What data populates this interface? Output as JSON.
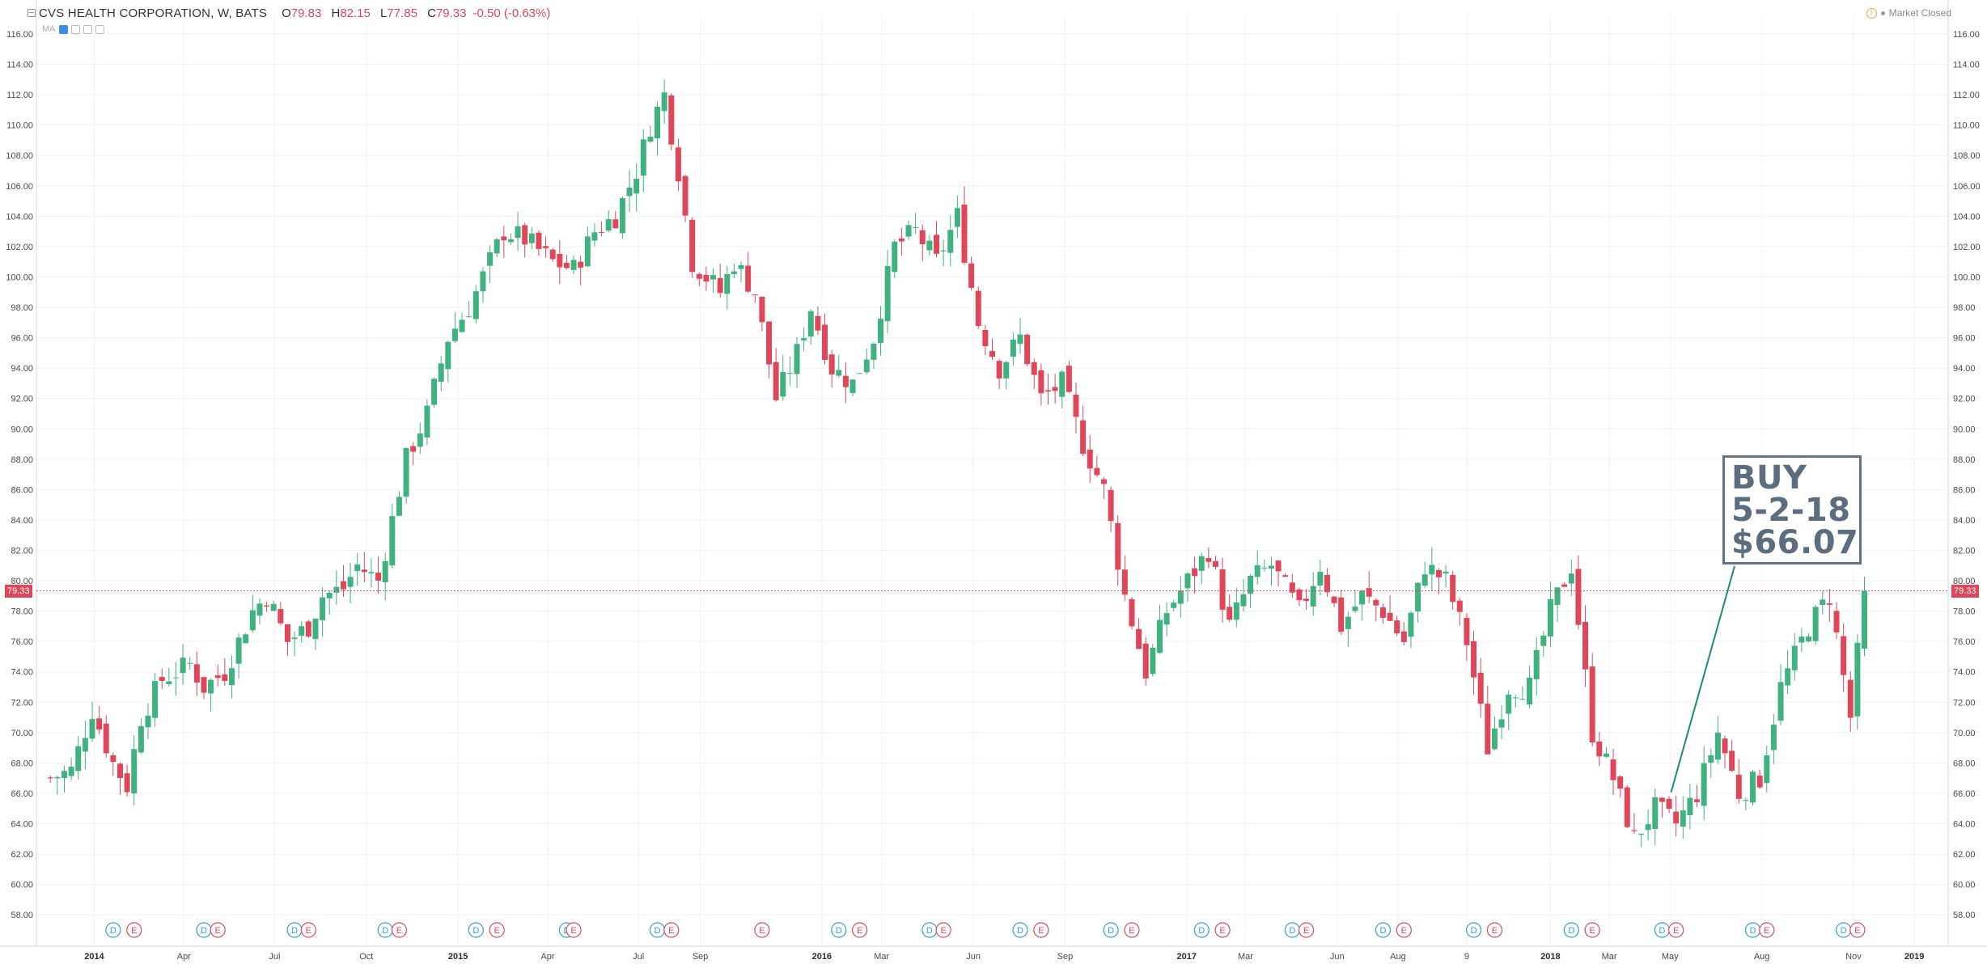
{
  "header": {
    "symbol": "CVS HEALTH CORPORATION, W, BATS",
    "o_label": "O",
    "o_value": "79.83",
    "h_label": "H",
    "h_value": "82.15",
    "l_label": "L",
    "l_value": "77.85",
    "c_label": "C",
    "c_value": "79.33",
    "change": "-0.50 (-0.63%)",
    "ma_label": "MA",
    "market_status": "Market Closed",
    "last_price_tag": "79.33"
  },
  "annotation": {
    "line1": "BUY",
    "line2": "5-2-18",
    "line3": "$66.07",
    "points_to": {
      "date": "2018-05-02",
      "price": 66.07
    }
  },
  "colors": {
    "up": "#3fb27f",
    "down": "#e0465a",
    "grid": "#eef2f5",
    "dividend_marker": "#2f9ce6",
    "earnings_marker": "#e0465a",
    "annotation": "#5d6d80"
  },
  "chart_data": {
    "type": "candlestick",
    "title": "CVS HEALTH CORPORATION, W, BATS",
    "interval": "W",
    "ylim": [
      57,
      116
    ],
    "y_ticks": [
      "58.00",
      "60.00",
      "62.00",
      "64.00",
      "66.00",
      "68.00",
      "70.00",
      "72.00",
      "74.00",
      "76.00",
      "78.00",
      "80.00",
      "82.00",
      "84.00",
      "86.00",
      "88.00",
      "90.00",
      "92.00",
      "94.00",
      "96.00",
      "98.00",
      "100.00",
      "102.00",
      "104.00",
      "106.00",
      "108.00",
      "110.00",
      "112.00",
      "114.00",
      "116.00"
    ],
    "x_ticks": [
      {
        "label": "2014",
        "date": "2014-01-01",
        "bold": true
      },
      {
        "label": "Apr",
        "date": "2014-04-01"
      },
      {
        "label": "Jul",
        "date": "2014-07-01"
      },
      {
        "label": "Oct",
        "date": "2014-10-01"
      },
      {
        "label": "2015",
        "date": "2015-01-01",
        "bold": true
      },
      {
        "label": "Apr",
        "date": "2015-04-01"
      },
      {
        "label": "Jul",
        "date": "2015-07-01"
      },
      {
        "label": "Sep",
        "date": "2015-09-01"
      },
      {
        "label": "2016",
        "date": "2016-01-01",
        "bold": true
      },
      {
        "label": "Mar",
        "date": "2016-03-01"
      },
      {
        "label": "Jun",
        "date": "2016-06-01"
      },
      {
        "label": "Sep",
        "date": "2016-09-01"
      },
      {
        "label": "2017",
        "date": "2017-01-01",
        "bold": true
      },
      {
        "label": "Mar",
        "date": "2017-03-01"
      },
      {
        "label": "Jun",
        "date": "2017-06-01"
      },
      {
        "label": "Aug",
        "date": "2017-08-01"
      },
      {
        "label": "9",
        "date": "2017-10-09"
      },
      {
        "label": "2018",
        "date": "2018-01-01",
        "bold": true
      },
      {
        "label": "Mar",
        "date": "2018-03-01"
      },
      {
        "label": "May",
        "date": "2018-05-01"
      },
      {
        "label": "Aug",
        "date": "2018-08-01"
      },
      {
        "label": "Nov",
        "date": "2018-11-01"
      },
      {
        "label": "2019",
        "date": "2019-01-01",
        "bold": true
      }
    ],
    "price_anchors": [
      [
        "2013-11-18",
        67.0
      ],
      [
        "2013-12-09",
        67.5
      ],
      [
        "2013-12-30",
        71.5
      ],
      [
        "2014-01-20",
        68.0
      ],
      [
        "2014-02-03",
        66.5
      ],
      [
        "2014-02-17",
        71.0
      ],
      [
        "2014-03-10",
        73.5
      ],
      [
        "2014-04-07",
        74.5
      ],
      [
        "2014-04-21",
        73.0
      ],
      [
        "2014-05-12",
        74.0
      ],
      [
        "2014-06-09",
        78.0
      ],
      [
        "2014-06-23",
        79.0
      ],
      [
        "2014-07-14",
        76.0
      ],
      [
        "2014-08-04",
        77.0
      ],
      [
        "2014-08-18",
        79.0
      ],
      [
        "2014-09-08",
        79.5
      ],
      [
        "2014-09-22",
        81.0
      ],
      [
        "2014-10-13",
        80.0
      ],
      [
        "2014-10-27",
        84.0
      ],
      [
        "2014-11-10",
        88.0
      ],
      [
        "2014-12-01",
        91.0
      ],
      [
        "2014-12-22",
        96.0
      ],
      [
        "2015-01-12",
        98.0
      ],
      [
        "2015-02-02",
        101.0
      ],
      [
        "2015-02-16",
        103.0
      ],
      [
        "2015-03-09",
        102.5
      ],
      [
        "2015-04-06",
        101.0
      ],
      [
        "2015-04-27",
        100.5
      ],
      [
        "2015-05-18",
        103.0
      ],
      [
        "2015-06-08",
        104.0
      ],
      [
        "2015-06-29",
        107.0
      ],
      [
        "2015-07-13",
        110.0
      ],
      [
        "2015-07-27",
        112.0
      ],
      [
        "2015-08-10",
        107.0
      ],
      [
        "2015-08-24",
        101.0
      ],
      [
        "2015-09-07",
        100.0
      ],
      [
        "2015-09-21",
        99.0
      ],
      [
        "2015-10-05",
        101.0
      ],
      [
        "2015-10-26",
        99.0
      ],
      [
        "2015-11-16",
        92.0
      ],
      [
        "2015-12-07",
        95.0
      ],
      [
        "2015-12-21",
        98.0
      ],
      [
        "2016-01-11",
        94.0
      ],
      [
        "2016-02-01",
        93.0
      ],
      [
        "2016-02-22",
        96.0
      ],
      [
        "2016-03-14",
        102.0
      ],
      [
        "2016-04-04",
        103.0
      ],
      [
        "2016-04-25",
        101.0
      ],
      [
        "2016-05-16",
        104.0
      ],
      [
        "2016-06-06",
        97.0
      ],
      [
        "2016-06-27",
        94.0
      ],
      [
        "2016-07-18",
        96.0
      ],
      [
        "2016-08-08",
        92.0
      ],
      [
        "2016-08-29",
        93.0
      ],
      [
        "2016-09-19",
        89.0
      ],
      [
        "2016-10-10",
        86.0
      ],
      [
        "2016-10-31",
        79.0
      ],
      [
        "2016-11-21",
        74.0
      ],
      [
        "2016-12-12",
        78.0
      ],
      [
        "2017-01-02",
        80.0
      ],
      [
        "2017-01-23",
        82.0
      ],
      [
        "2017-02-13",
        77.0
      ],
      [
        "2017-03-06",
        80.0
      ],
      [
        "2017-03-27",
        81.0
      ],
      [
        "2017-04-24",
        78.0
      ],
      [
        "2017-05-15",
        81.0
      ],
      [
        "2017-06-05",
        77.0
      ],
      [
        "2017-06-26",
        79.0
      ],
      [
        "2017-07-17",
        78.0
      ],
      [
        "2017-08-07",
        76.0
      ],
      [
        "2017-08-28",
        81.0
      ],
      [
        "2017-09-18",
        80.0
      ],
      [
        "2017-10-09",
        76.0
      ],
      [
        "2017-10-30",
        69.0
      ],
      [
        "2017-11-20",
        73.0
      ],
      [
        "2017-12-11",
        73.0
      ],
      [
        "2018-01-01",
        78.0
      ],
      [
        "2018-01-22",
        81.0
      ],
      [
        "2018-02-12",
        70.0
      ],
      [
        "2018-03-05",
        67.0
      ],
      [
        "2018-03-26",
        63.0
      ],
      [
        "2018-04-16",
        65.0
      ],
      [
        "2018-05-07",
        64.0
      ],
      [
        "2018-05-28",
        66.0
      ],
      [
        "2018-06-18",
        70.0
      ],
      [
        "2018-07-09",
        66.0
      ],
      [
        "2018-07-30",
        67.0
      ],
      [
        "2018-08-20",
        73.0
      ],
      [
        "2018-09-17",
        77.0
      ],
      [
        "2018-10-08",
        79.0
      ],
      [
        "2018-10-29",
        71.0
      ],
      [
        "2018-11-12",
        79.33
      ]
    ],
    "last_close": 79.33,
    "events": [
      {
        "type": "D",
        "date": "2014-01-20"
      },
      {
        "type": "E",
        "date": "2014-02-10"
      },
      {
        "type": "D",
        "date": "2014-04-21"
      },
      {
        "type": "E",
        "date": "2014-05-05"
      },
      {
        "type": "D",
        "date": "2014-07-21"
      },
      {
        "type": "E",
        "date": "2014-08-04"
      },
      {
        "type": "D",
        "date": "2014-10-20"
      },
      {
        "type": "E",
        "date": "2014-11-03"
      },
      {
        "type": "D",
        "date": "2015-01-19"
      },
      {
        "type": "E",
        "date": "2015-02-09"
      },
      {
        "type": "D",
        "date": "2015-04-20"
      },
      {
        "type": "E",
        "date": "2015-04-27"
      },
      {
        "type": "D",
        "date": "2015-07-20"
      },
      {
        "type": "E",
        "date": "2015-08-03"
      },
      {
        "type": "E",
        "date": "2015-11-02"
      },
      {
        "type": "D",
        "date": "2016-01-18"
      },
      {
        "type": "E",
        "date": "2016-02-08"
      },
      {
        "type": "D",
        "date": "2016-04-18"
      },
      {
        "type": "E",
        "date": "2016-05-02"
      },
      {
        "type": "D",
        "date": "2016-07-18"
      },
      {
        "type": "E",
        "date": "2016-08-08"
      },
      {
        "type": "D",
        "date": "2016-10-17"
      },
      {
        "type": "E",
        "date": "2016-11-07"
      },
      {
        "type": "D",
        "date": "2017-01-16"
      },
      {
        "type": "E",
        "date": "2017-02-06"
      },
      {
        "type": "D",
        "date": "2017-04-17"
      },
      {
        "type": "E",
        "date": "2017-05-01"
      },
      {
        "type": "D",
        "date": "2017-07-17"
      },
      {
        "type": "E",
        "date": "2017-08-07"
      },
      {
        "type": "D",
        "date": "2017-10-16"
      },
      {
        "type": "E",
        "date": "2017-11-06"
      },
      {
        "type": "D",
        "date": "2018-01-22"
      },
      {
        "type": "E",
        "date": "2018-02-12"
      },
      {
        "type": "D",
        "date": "2018-04-23"
      },
      {
        "type": "E",
        "date": "2018-05-07"
      },
      {
        "type": "D",
        "date": "2018-07-23"
      },
      {
        "type": "E",
        "date": "2018-08-06"
      },
      {
        "type": "D",
        "date": "2018-10-22"
      },
      {
        "type": "E",
        "date": "2018-11-05"
      }
    ]
  }
}
